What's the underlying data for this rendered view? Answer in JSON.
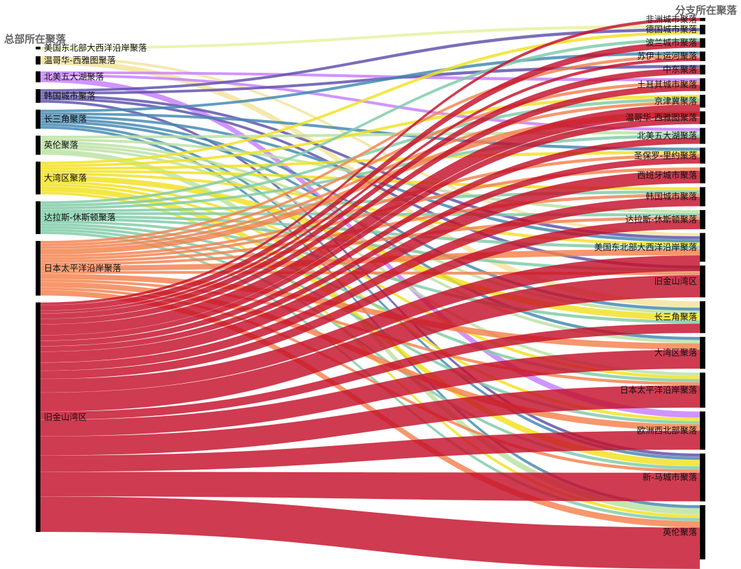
{
  "titles": {
    "left": "总部所在聚落",
    "right": "分支所在聚落"
  },
  "colors": {
    "美国东北部大西洋沿岸聚落": "#e6f0a0",
    "温哥华-西雅图聚落": "#f3e39a",
    "北美五大湖聚落": "#c77dff",
    "韩国城市聚落": "#5b4ea8",
    "长三角聚落": "#3f86b0",
    "英伦聚落": "#b9e2a0",
    "大湾区聚落": "#f2e01c",
    "达拉斯-休斯顿聚落": "#7ccaa6",
    "日本太平洋沿岸聚落": "#f4804c",
    "旧金山湾区": "#c5102a"
  },
  "chart_data": {
    "type": "sankey",
    "sources": [
      {
        "name": "美国东北部大西洋沿岸聚落",
        "value": 1
      },
      {
        "name": "温哥华-西雅图聚落",
        "value": 3
      },
      {
        "name": "北美五大湖聚落",
        "value": 4
      },
      {
        "name": "韩国城市聚落",
        "value": 5
      },
      {
        "name": "长三角聚落",
        "value": 7
      },
      {
        "name": "英伦聚落",
        "value": 7
      },
      {
        "name": "大湾区聚落",
        "value": 12
      },
      {
        "name": "达拉斯-休斯顿聚落",
        "value": 12
      },
      {
        "name": "日本太平洋沿岸聚落",
        "value": 20
      },
      {
        "name": "旧金山湾区",
        "value": 84
      }
    ],
    "targets": [
      {
        "name": "非洲城市聚落",
        "value": 1
      },
      {
        "name": "德国城市聚落",
        "value": 3
      },
      {
        "name": "波兰城市聚落",
        "value": 3
      },
      {
        "name": "苏伊士运河聚落",
        "value": 3
      },
      {
        "name": "中东聚落",
        "value": 3
      },
      {
        "name": "土耳其城市聚落",
        "value": 4
      },
      {
        "name": "京津冀聚落",
        "value": 4
      },
      {
        "name": "温哥华-西雅图聚落",
        "value": 4
      },
      {
        "name": "北美五大湖聚落",
        "value": 5
      },
      {
        "name": "圣保罗-里约聚落",
        "value": 5
      },
      {
        "name": "西班牙城市聚落",
        "value": 5
      },
      {
        "name": "韩国城市聚落",
        "value": 6
      },
      {
        "name": "达拉斯-休斯顿聚落",
        "value": 6
      },
      {
        "name": "美国东北部大西洋沿岸聚落",
        "value": 9
      },
      {
        "name": "旧金山湾区",
        "value": 10
      },
      {
        "name": "长三角聚落",
        "value": 10
      },
      {
        "name": "大湾区聚落",
        "value": 10
      },
      {
        "name": "日本太平洋沿岸聚落",
        "value": 11
      },
      {
        "name": "欧洲西北部聚落",
        "value": 12
      },
      {
        "name": "新-马城市聚落",
        "value": 15
      },
      {
        "name": "英伦聚落",
        "value": 17
      }
    ]
  }
}
